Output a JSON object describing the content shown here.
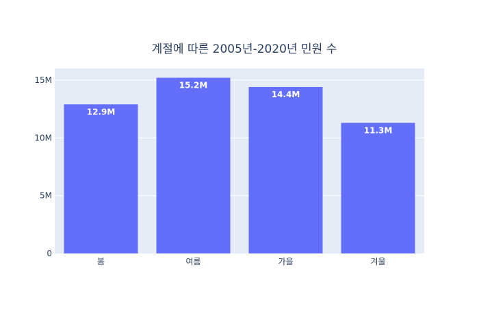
{
  "chart_data": {
    "type": "bar",
    "title": "계절에 따른 2005년-2020년 민원 수",
    "xlabel": "",
    "ylabel": "",
    "categories": [
      "봄",
      "여름",
      "가을",
      "겨울"
    ],
    "values": [
      12900000,
      15200000,
      14400000,
      11300000
    ],
    "data_labels": [
      "12.9M",
      "15.2M",
      "14.4M",
      "11.3M"
    ],
    "ylim": [
      0,
      16000000
    ],
    "yticks": [
      {
        "value": 0,
        "label": "0"
      },
      {
        "value": 5000000,
        "label": "5M"
      },
      {
        "value": 10000000,
        "label": "10M"
      },
      {
        "value": 15000000,
        "label": "15M"
      }
    ],
    "grid": true,
    "legend": "none",
    "colors": {
      "bar": "#636efa",
      "plot_bg": "#e5ecf6",
      "grid": "#ffffff",
      "text": "#2a3f5f",
      "label": "#ffffff"
    }
  }
}
